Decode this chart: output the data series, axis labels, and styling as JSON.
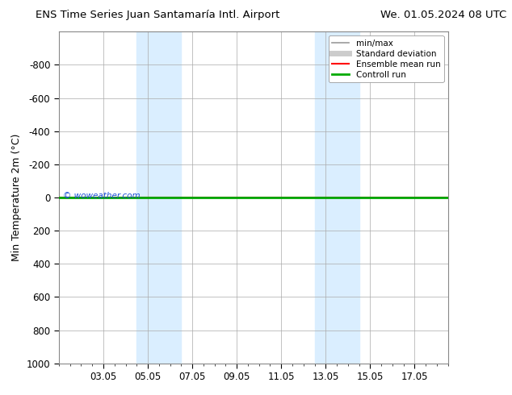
{
  "title_left": "ENS Time Series Juan Santamaría Intl. Airport",
  "title_right": "We. 01.05.2024 08 UTC",
  "ylabel": "Min Temperature 2m (°C)",
  "ylim_top": -1000,
  "ylim_bottom": 1000,
  "yticks": [
    -800,
    -600,
    -400,
    -200,
    0,
    200,
    400,
    600,
    800,
    1000
  ],
  "xtick_labels": [
    "03.05",
    "05.05",
    "07.05",
    "09.05",
    "11.05",
    "13.05",
    "15.05",
    "17.05"
  ],
  "xtick_positions": [
    2,
    4,
    6,
    8,
    10,
    12,
    14,
    16
  ],
  "xlim_left": 0,
  "xlim_right": 17.5,
  "shade_bands": [
    {
      "x_start": 3.5,
      "x_end": 5.5
    },
    {
      "x_start": 11.5,
      "x_end": 13.5
    }
  ],
  "shade_color": "#daeeff",
  "background_color": "#ffffff",
  "plot_bg_color": "#ffffff",
  "grid_color": "#aaaaaa",
  "watermark_text": "© woweather.com",
  "watermark_color": "#1a4fd6",
  "legend_items": [
    {
      "label": "min/max",
      "color": "#999999",
      "lw": 1.2,
      "style": "solid"
    },
    {
      "label": "Standard deviation",
      "color": "#cccccc",
      "lw": 5,
      "style": "solid"
    },
    {
      "label": "Ensemble mean run",
      "color": "#ff0000",
      "lw": 1.5,
      "style": "solid"
    },
    {
      "label": "Controll run",
      "color": "#00aa00",
      "lw": 2.0,
      "style": "solid"
    }
  ],
  "green_line_y": 0,
  "red_line_y": 0,
  "green_line_color": "#00aa00",
  "red_line_color": "#ff0000",
  "green_line_lw": 2.0,
  "red_line_lw": 1.5
}
